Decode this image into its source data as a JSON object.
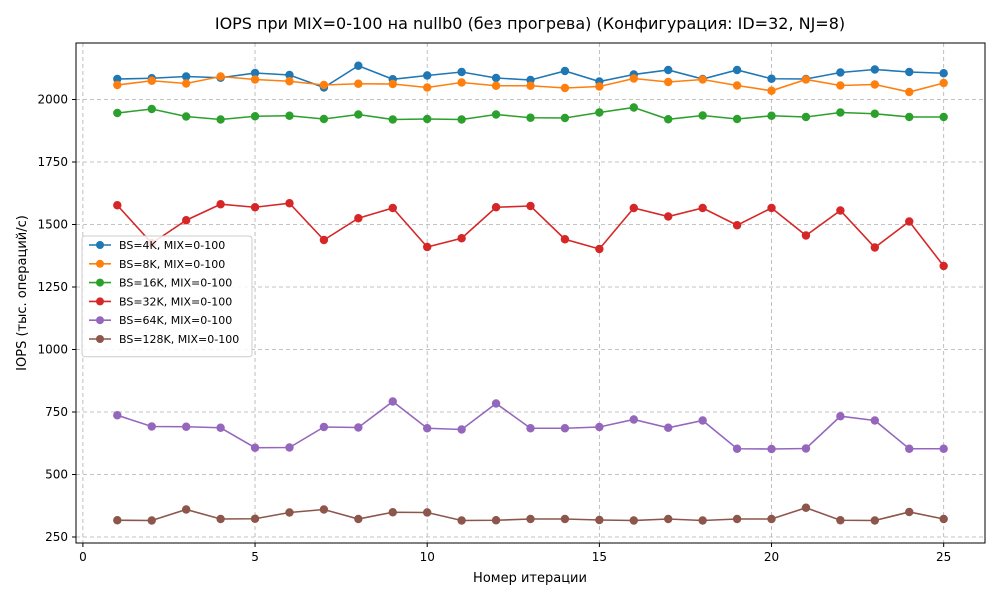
{
  "chart_data": {
    "type": "line",
    "title": "IOPS при MIX=0-100 на nullb0 (без прогрева) (Конфигурация: ID=32, NJ=8)",
    "xlabel": "Номер итерации",
    "ylabel": "IOPS (тыс. операций/с)",
    "xlim": [
      -0.2,
      26.2
    ],
    "ylim": [
      226,
      2226
    ],
    "xticks": [
      0,
      5,
      10,
      15,
      20,
      25
    ],
    "yticks": [
      250,
      500,
      750,
      1000,
      1250,
      1500,
      1750,
      2000
    ],
    "grid": true,
    "legend_position": "center-left",
    "x": [
      1,
      2,
      3,
      4,
      5,
      6,
      7,
      8,
      9,
      10,
      11,
      12,
      13,
      14,
      15,
      16,
      17,
      18,
      19,
      20,
      21,
      22,
      23,
      24,
      25
    ],
    "series": [
      {
        "name": "BS=4K, MIX=0-100",
        "color": "#1f77b4",
        "values": [
          2082,
          2085,
          2092,
          2087,
          2106,
          2098,
          2048,
          2135,
          2081,
          2096,
          2110,
          2086,
          2078,
          2114,
          2072,
          2100,
          2118,
          2082,
          2118,
          2083,
          2082,
          2108,
          2120,
          2110,
          2105
        ]
      },
      {
        "name": "BS=8K, MIX=0-100",
        "color": "#ff7f0e",
        "values": [
          2058,
          2075,
          2064,
          2092,
          2080,
          2073,
          2058,
          2063,
          2062,
          2048,
          2068,
          2055,
          2055,
          2046,
          2052,
          2084,
          2070,
          2080,
          2056,
          2035,
          2080,
          2056,
          2060,
          2030,
          2066
        ]
      },
      {
        "name": "BS=16K, MIX=0-100",
        "color": "#2ca02c",
        "values": [
          1946,
          1962,
          1932,
          1920,
          1933,
          1935,
          1922,
          1940,
          1920,
          1922,
          1920,
          1940,
          1927,
          1926,
          1948,
          1968,
          1921,
          1936,
          1922,
          1935,
          1930,
          1948,
          1943,
          1930,
          1930
        ]
      },
      {
        "name": "BS=32K, MIX=0-100",
        "color": "#d62728",
        "values": [
          1577,
          1425,
          1517,
          1581,
          1569,
          1585,
          1438,
          1525,
          1566,
          1410,
          1445,
          1569,
          1574,
          1441,
          1402,
          1566,
          1532,
          1566,
          1497,
          1566,
          1456,
          1556,
          1408,
          1512,
          1334
        ]
      },
      {
        "name": "BS=64K, MIX=0-100",
        "color": "#9467bd",
        "values": [
          737,
          692,
          691,
          687,
          607,
          608,
          690,
          688,
          792,
          685,
          680,
          784,
          685,
          685,
          690,
          720,
          687,
          716,
          603,
          602,
          604,
          733,
          716,
          603,
          603
        ]
      },
      {
        "name": "BS=128K, MIX=0-100",
        "color": "#8c564b",
        "values": [
          317,
          316,
          360,
          322,
          323,
          348,
          360,
          322,
          349,
          348,
          316,
          317,
          322,
          322,
          318,
          316,
          322,
          316,
          322,
          322,
          367,
          317,
          316,
          350,
          322
        ]
      }
    ]
  }
}
